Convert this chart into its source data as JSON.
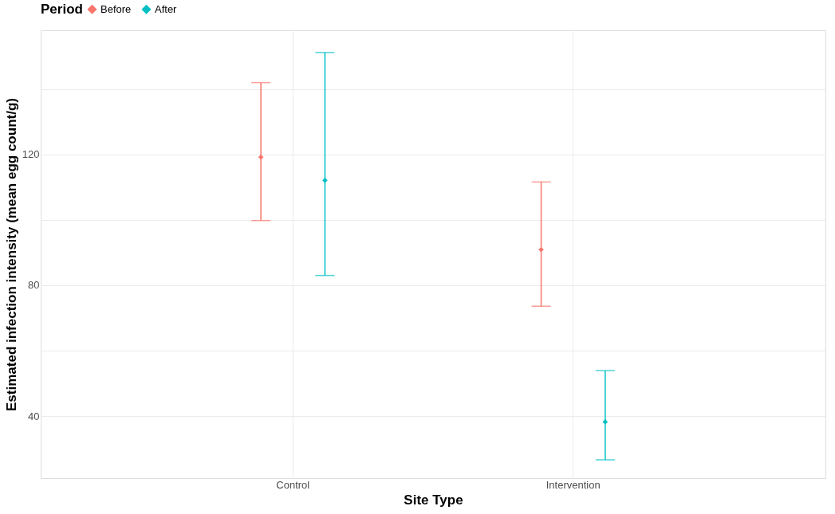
{
  "chart_data": {
    "type": "scatter",
    "xlabel": "Site Type",
    "ylabel": "Estimated infection intensity (mean egg count/g)",
    "legend_title": "Period",
    "categories": [
      "Control",
      "Intervention"
    ],
    "series": [
      {
        "name": "Before",
        "color": "#f8766d",
        "values": [
          119.2,
          90.9
        ],
        "errors": [
          [
            99.8,
            142
          ],
          [
            73.6,
            111.6
          ]
        ]
      },
      {
        "name": "After",
        "color": "#00bfc4",
        "values": [
          112.1,
          38.2
        ],
        "errors": [
          [
            83,
            151.2
          ],
          [
            26.6,
            53.9
          ]
        ]
      }
    ],
    "ylim": [
      21,
      158
    ],
    "yticks": [
      {
        "value": 40,
        "label": "40"
      },
      {
        "value": 60,
        "label": null
      },
      {
        "value": 80,
        "label": "80"
      },
      {
        "value": 100,
        "label": null
      },
      {
        "value": 120,
        "label": "120"
      },
      {
        "value": 140,
        "label": null
      }
    ],
    "grid": true,
    "legend": "top",
    "marker": "diamond"
  }
}
